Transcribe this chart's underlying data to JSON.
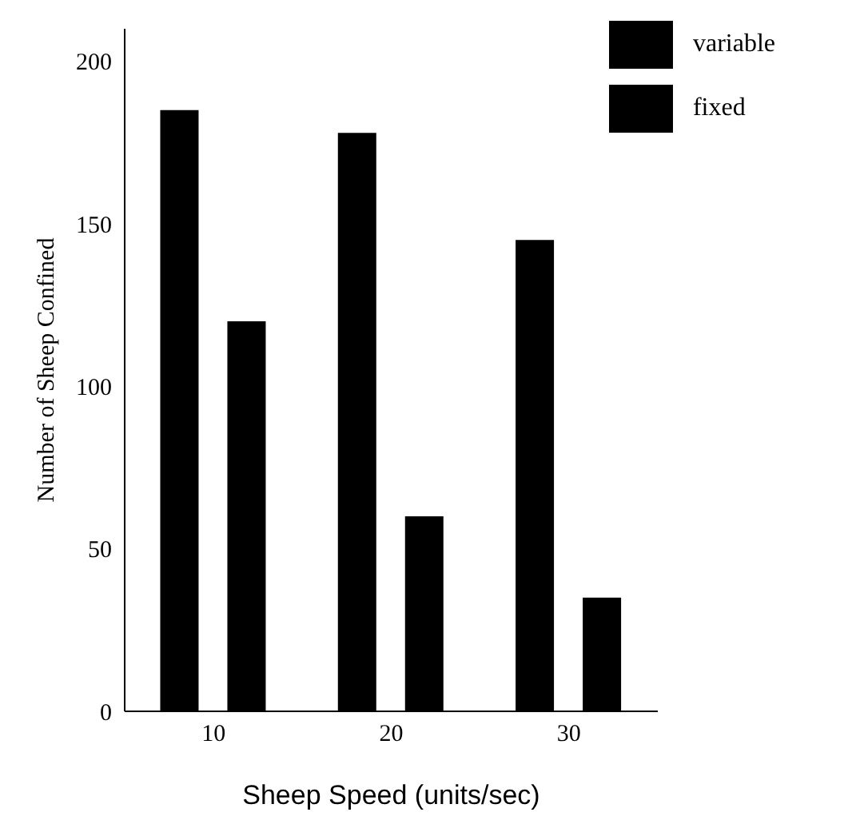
{
  "chart_data": {
    "type": "bar",
    "categories": [
      "10",
      "20",
      "30"
    ],
    "xlabel": "Sheep Speed (units/sec)",
    "ylabel": "Number of Sheep Confined",
    "series": [
      {
        "name": "variable",
        "color": "#000000",
        "values": [
          185,
          178,
          145
        ]
      },
      {
        "name": "fixed",
        "color": "#000000",
        "values": [
          120,
          60,
          35
        ]
      }
    ],
    "ylim": [
      0,
      210
    ],
    "yticks": [
      0,
      50,
      100,
      150,
      200
    ],
    "grid": false,
    "legend": "top right"
  }
}
